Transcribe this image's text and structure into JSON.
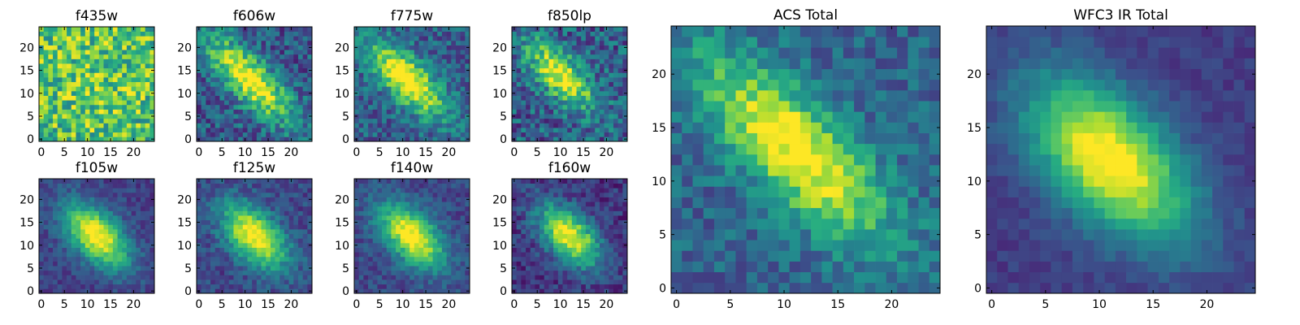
{
  "colormap": [
    "#440154",
    "#472c7a",
    "#3b518b",
    "#2c718e",
    "#21908d",
    "#27ad81",
    "#5cc863",
    "#aadc32",
    "#fde725"
  ],
  "image_size": 25,
  "chart_data": [
    {
      "type": "heatmap",
      "title": "f435w",
      "xticks": [
        "0",
        "5",
        "10",
        "15",
        "20"
      ],
      "yticks": [
        "0",
        "5",
        "10",
        "15",
        "20"
      ],
      "xlim": [
        -0.5,
        24.5
      ],
      "ylim": [
        -0.5,
        24.5
      ],
      "peak": [
        12,
        12
      ],
      "sigma_major": 9,
      "sigma_minor": 9,
      "amplitude": 0.08,
      "background": 0.68,
      "noise": 0.28,
      "seed": 11
    },
    {
      "type": "heatmap",
      "title": "f606w",
      "xticks": [
        "0",
        "5",
        "10",
        "15",
        "20"
      ],
      "yticks": [
        "0",
        "5",
        "10",
        "15",
        "20"
      ],
      "xlim": [
        -0.5,
        24.5
      ],
      "ylim": [
        -0.5,
        24.5
      ],
      "peak": [
        11,
        13
      ],
      "sigma_major": 8.5,
      "sigma_minor": 3.0,
      "amplitude": 0.78,
      "background": 0.28,
      "noise": 0.2,
      "seed": 23
    },
    {
      "type": "heatmap",
      "title": "f775w",
      "xticks": [
        "0",
        "5",
        "10",
        "15",
        "20"
      ],
      "yticks": [
        "0",
        "5",
        "10",
        "15",
        "20"
      ],
      "xlim": [
        -0.5,
        24.5
      ],
      "ylim": [
        -0.5,
        24.5
      ],
      "peak": [
        11,
        13
      ],
      "sigma_major": 7.5,
      "sigma_minor": 3.0,
      "amplitude": 0.78,
      "background": 0.3,
      "noise": 0.18,
      "seed": 37
    },
    {
      "type": "heatmap",
      "title": "f850lp",
      "xticks": [
        "0",
        "5",
        "10",
        "15",
        "20"
      ],
      "yticks": [
        "0",
        "5",
        "10",
        "15",
        "20"
      ],
      "xlim": [
        -0.5,
        24.5
      ],
      "ylim": [
        -0.5,
        24.5
      ],
      "peak": [
        10,
        14
      ],
      "sigma_major": 6.5,
      "sigma_minor": 2.8,
      "amplitude": 0.72,
      "background": 0.3,
      "noise": 0.22,
      "seed": 41
    },
    {
      "type": "heatmap",
      "title": "f105w",
      "xticks": [
        "0",
        "5",
        "10",
        "15",
        "20"
      ],
      "yticks": [
        "0",
        "5",
        "10",
        "15",
        "20"
      ],
      "xlim": [
        -0.5,
        24.5
      ],
      "ylim": [
        -0.5,
        24.5
      ],
      "peak": [
        12,
        12
      ],
      "sigma_major": 6.0,
      "sigma_minor": 3.4,
      "amplitude": 0.84,
      "background": 0.2,
      "noise": 0.1,
      "seed": 53
    },
    {
      "type": "heatmap",
      "title": "f125w",
      "xticks": [
        "0",
        "5",
        "10",
        "15",
        "20"
      ],
      "yticks": [
        "0",
        "5",
        "10",
        "15",
        "20"
      ],
      "xlim": [
        -0.5,
        24.5
      ],
      "ylim": [
        -0.5,
        24.5
      ],
      "peak": [
        12,
        12
      ],
      "sigma_major": 6.0,
      "sigma_minor": 3.4,
      "amplitude": 0.82,
      "background": 0.22,
      "noise": 0.12,
      "seed": 61
    },
    {
      "type": "heatmap",
      "title": "f140w",
      "xticks": [
        "0",
        "5",
        "10",
        "15",
        "20"
      ],
      "yticks": [
        "0",
        "5",
        "10",
        "15",
        "20"
      ],
      "xlim": [
        -0.5,
        24.5
      ],
      "ylim": [
        -0.5,
        24.5
      ],
      "peak": [
        12,
        12
      ],
      "sigma_major": 6.0,
      "sigma_minor": 3.4,
      "amplitude": 0.82,
      "background": 0.22,
      "noise": 0.11,
      "seed": 71
    },
    {
      "type": "heatmap",
      "title": "f160w",
      "xticks": [
        "0",
        "5",
        "10",
        "15",
        "20"
      ],
      "yticks": [
        "0",
        "5",
        "10",
        "15",
        "20"
      ],
      "xlim": [
        -0.5,
        24.5
      ],
      "ylim": [
        -0.5,
        24.5
      ],
      "peak": [
        12,
        12
      ],
      "sigma_major": 5.8,
      "sigma_minor": 3.2,
      "amplitude": 0.86,
      "background": 0.16,
      "noise": 0.13,
      "seed": 83
    },
    {
      "type": "heatmap",
      "title": "ACS Total",
      "xticks": [
        "0",
        "5",
        "10",
        "15",
        "20"
      ],
      "yticks": [
        "0",
        "5",
        "10",
        "15",
        "20"
      ],
      "xlim": [
        -0.5,
        24.5
      ],
      "ylim": [
        -0.5,
        24.5
      ],
      "peak": [
        11,
        13
      ],
      "sigma_major": 8.0,
      "sigma_minor": 3.0,
      "amplitude": 0.72,
      "background": 0.32,
      "noise": 0.14,
      "seed": 97
    },
    {
      "type": "heatmap",
      "title": "WFC3 IR Total",
      "xticks": [
        "0",
        "5",
        "10",
        "15",
        "20"
      ],
      "yticks": [
        "0",
        "5",
        "10",
        "15",
        "20"
      ],
      "xlim": [
        -0.5,
        24.5
      ],
      "ylim": [
        -0.5,
        24.5
      ],
      "peak": [
        11,
        12
      ],
      "sigma_major": 6.5,
      "sigma_minor": 3.6,
      "amplitude": 0.88,
      "background": 0.18,
      "noise": 0.06,
      "seed": 101
    }
  ]
}
